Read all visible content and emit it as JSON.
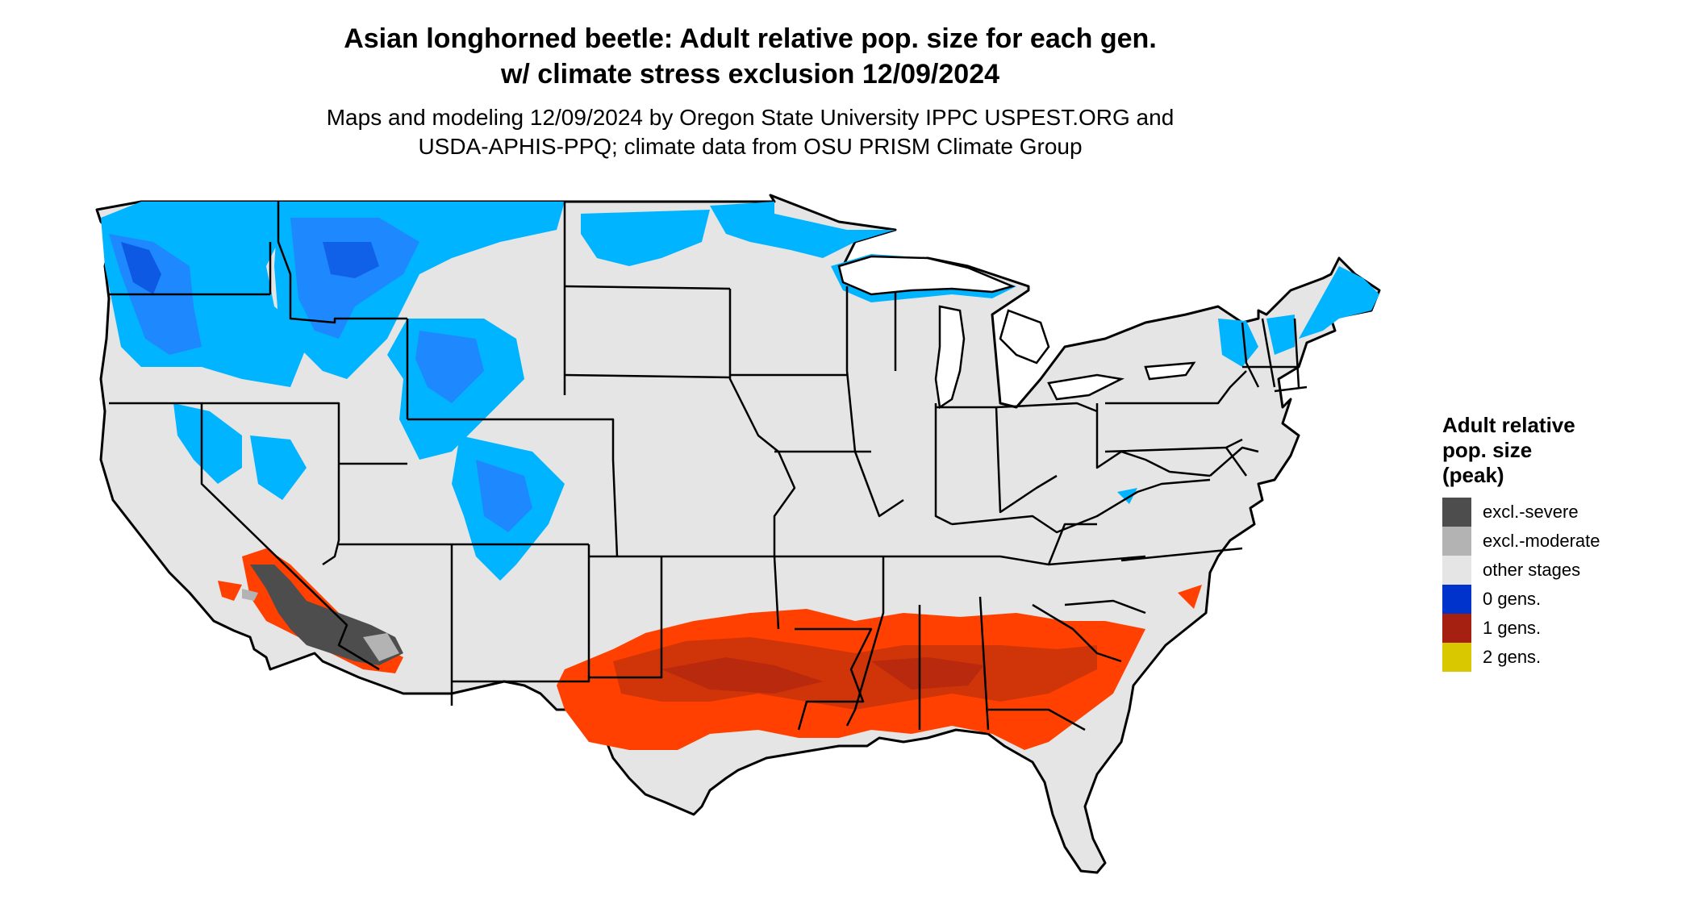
{
  "title": {
    "line1": "Asian longhorned beetle: Adult relative pop. size for each gen.",
    "line2": "w/ climate stress exclusion 12/09/2024"
  },
  "subtitle": {
    "line1": "Maps and modeling 12/09/2024 by Oregon State University IPPC USPEST.ORG and",
    "line2": "USDA-APHIS-PPQ; climate data from OSU PRISM Climate Group"
  },
  "colors": {
    "background_land": "#e5e5e5",
    "state_border": "#000000",
    "excl_severe": "#4d4d4d",
    "excl_moderate": "#b3b3b3",
    "other_stages": "#e5e5e5",
    "gen0": "#0033cc",
    "gen1": "#a52010",
    "gen2": "#d9c800",
    "cold_light": "#00b4ff",
    "cold_mid": "#1e88ff",
    "hot_orange": "#ff4000",
    "hot_dark": "#c0300c"
  },
  "legend": {
    "title_lines": [
      "Adult relative",
      "pop. size",
      "(peak)"
    ],
    "items": [
      {
        "label": "excl.-severe",
        "color": "#4d4d4d"
      },
      {
        "label": "excl.-moderate",
        "color": "#b3b3b3"
      },
      {
        "label": "other stages",
        "color": "#e5e5e5"
      },
      {
        "label": "0 gens.",
        "color": "#0033cc"
      },
      {
        "label": "1 gens.",
        "color": "#a52010"
      },
      {
        "label": "2 gens.",
        "color": "#d9c800"
      }
    ]
  }
}
